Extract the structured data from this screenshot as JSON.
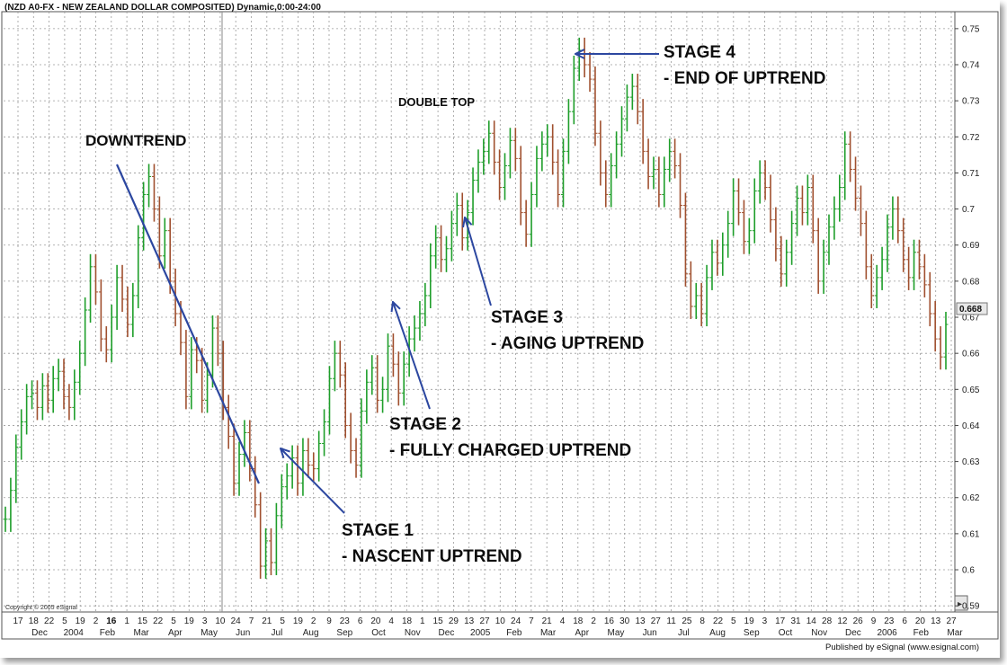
{
  "chart_data": {
    "type": "line",
    "title": "(NZD A0-FX - NEW ZEALAND DOLLAR COMPOSITED) Dynamic,0:00-24:00",
    "copyright": "Copyright © 2005 eSignal",
    "publisher": "Published by eSignal (www.esignal.com)",
    "xlabel": "",
    "ylabel": "",
    "ylim": [
      0.5883,
      0.7547
    ],
    "y_ticks": [
      0.59,
      0.6,
      0.61,
      0.62,
      0.63,
      0.64,
      0.65,
      0.66,
      0.67,
      0.68,
      0.69,
      0.7,
      0.71,
      0.72,
      0.73,
      0.74,
      0.75
    ],
    "y_tick_labels": [
      "0.59",
      "0.6",
      "0.61",
      "0.62",
      "0.63",
      "0.64",
      "0.65",
      "0.66",
      "0.67",
      "0.68",
      "0.69",
      "0.7",
      "0.71",
      "0.72",
      "0.73",
      "0.74",
      "0.75"
    ],
    "last_value_label": "0.668",
    "grid": true,
    "x_tick_labels": [
      "17",
      "18",
      "22",
      "5",
      "19",
      "2",
      "16",
      "1",
      "15",
      "22",
      "5",
      "19",
      "3",
      "10",
      "24",
      "7",
      "21",
      "5",
      "19",
      "2",
      "9",
      "23",
      "6",
      "20",
      "4",
      "18",
      "1",
      "15",
      "29",
      "13",
      "27",
      "10",
      "24",
      "7",
      "21",
      "4",
      "18",
      "2",
      "16",
      "30",
      "13",
      "27",
      "11",
      "25",
      "8",
      "22",
      "5",
      "19",
      "3",
      "17",
      "31",
      "14",
      "28",
      "12",
      "26",
      "9",
      "23",
      "6",
      "20",
      "13",
      "27"
    ],
    "x_tick_labels_bold": [
      "16"
    ],
    "x_month_labels": [
      "Dec",
      "2004",
      "Feb",
      "Mar",
      "Apr",
      "May",
      "Jun",
      "Jul",
      "Aug",
      "Sep",
      "Oct",
      "Nov",
      "Dec",
      "2005",
      "Feb",
      "Mar",
      "Apr",
      "May",
      "Jun",
      "Jul",
      "Aug",
      "Sep",
      "Oct",
      "Nov",
      "Dec",
      "2006",
      "Feb",
      "Mar"
    ],
    "series": [
      {
        "values": [
          0.614,
          0.622,
          0.634,
          0.641,
          0.648,
          0.649,
          0.645,
          0.651,
          0.647,
          0.653,
          0.655,
          0.648,
          0.645,
          0.652,
          0.66,
          0.672,
          0.684,
          0.677,
          0.664,
          0.661,
          0.67,
          0.681,
          0.675,
          0.668,
          0.676,
          0.692,
          0.704,
          0.709,
          0.7,
          0.687,
          0.694,
          0.68,
          0.671,
          0.663,
          0.648,
          0.661,
          0.658,
          0.647,
          0.654,
          0.667,
          0.66,
          0.645,
          0.637,
          0.624,
          0.632,
          0.638,
          0.628,
          0.618,
          0.601,
          0.608,
          0.602,
          0.615,
          0.623,
          0.626,
          0.631,
          0.624,
          0.633,
          0.629,
          0.628,
          0.635,
          0.641,
          0.653,
          0.66,
          0.654,
          0.64,
          0.633,
          0.629,
          0.644,
          0.652,
          0.656,
          0.647,
          0.65,
          0.662,
          0.657,
          0.649,
          0.657,
          0.664,
          0.667,
          0.671,
          0.676,
          0.687,
          0.692,
          0.686,
          0.689,
          0.696,
          0.701,
          0.692,
          0.699,
          0.708,
          0.713,
          0.716,
          0.721,
          0.713,
          0.706,
          0.712,
          0.719,
          0.714,
          0.699,
          0.693,
          0.704,
          0.714,
          0.718,
          0.72,
          0.713,
          0.704,
          0.716,
          0.727,
          0.739,
          0.744,
          0.74,
          0.736,
          0.721,
          0.71,
          0.704,
          0.712,
          0.718,
          0.725,
          0.731,
          0.734,
          0.727,
          0.716,
          0.709,
          0.711,
          0.704,
          0.711,
          0.716,
          0.712,
          0.701,
          0.682,
          0.673,
          0.676,
          0.671,
          0.681,
          0.688,
          0.685,
          0.69,
          0.696,
          0.705,
          0.699,
          0.691,
          0.694,
          0.705,
          0.71,
          0.706,
          0.697,
          0.689,
          0.682,
          0.688,
          0.696,
          0.703,
          0.699,
          0.706,
          0.694,
          0.68,
          0.688,
          0.695,
          0.7,
          0.706,
          0.718,
          0.711,
          0.703,
          0.696,
          0.684,
          0.676,
          0.681,
          0.686,
          0.695,
          0.7,
          0.694,
          0.686,
          0.681,
          0.688,
          0.684,
          0.679,
          0.671,
          0.664,
          0.659,
          0.668
        ]
      }
    ],
    "annotations": [
      {
        "text": "DOWNTREND"
      },
      {
        "text": "DOUBLE TOP"
      },
      {
        "text": "STAGE 1"
      },
      {
        "text": "- NASCENT UPTREND"
      },
      {
        "text": "STAGE 2"
      },
      {
        "text": "- FULLY CHARGED UPTREND"
      },
      {
        "text": "STAGE 3"
      },
      {
        "text": "- AGING UPTREND"
      },
      {
        "text": "STAGE 4"
      },
      {
        "text": "- END OF UPTREND"
      }
    ],
    "colors": {
      "up_bar": "#1e9e2a",
      "down_bar": "#a0502f",
      "annotation_arrow": "#2c47a0",
      "grid": "#9a9a9a",
      "text": "#0d0d0d"
    }
  }
}
